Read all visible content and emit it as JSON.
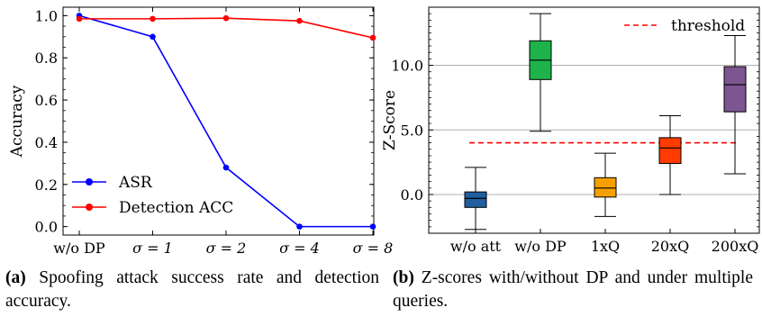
{
  "chart_data": [
    {
      "type": "line",
      "categories": [
        "w/o DP",
        "σ=1",
        "σ=2",
        "σ=4",
        "σ=8"
      ],
      "ylabel": "Accuracy",
      "ylim": [
        -0.04,
        1.04
      ],
      "yticks": [
        "0.0",
        "0.2",
        "0.4",
        "0.6",
        "0.8",
        "1.0"
      ],
      "legend_position": "lower-left",
      "series": [
        {
          "name": "ASR",
          "color": "#0000ff",
          "values": [
            1.0,
            0.9,
            0.28,
            0.0,
            0.0
          ]
        },
        {
          "name": "Detection ACC",
          "color": "#ff0000",
          "values": [
            0.985,
            0.985,
            0.988,
            0.975,
            0.895
          ]
        }
      ],
      "caption_label": "(a)",
      "caption_text": "Spoofing attack success rate and detection accuracy."
    },
    {
      "type": "box",
      "categories": [
        "w/o att",
        "w/o DP",
        "1xQ",
        "20xQ",
        "200xQ"
      ],
      "ylabel": "Z-Score",
      "ylim": [
        -3.0,
        14.5
      ],
      "yticks": [
        "0.0",
        "5.0",
        "10.0"
      ],
      "grid": true,
      "threshold": {
        "name": "threshold",
        "value": 4.0,
        "color": "#ff0000"
      },
      "boxes": [
        {
          "label": "w/o att",
          "color": "#1f5f9f",
          "whisker_low": -2.7,
          "q1": -1.0,
          "median": -0.3,
          "q3": 0.2,
          "whisker_high": 2.1
        },
        {
          "label": "w/o DP",
          "color": "#1db34a",
          "whisker_low": 4.9,
          "q1": 8.9,
          "median": 10.4,
          "q3": 11.9,
          "whisker_high": 14.0
        },
        {
          "label": "1xQ",
          "color": "#f5a000",
          "whisker_low": -1.7,
          "q1": -0.2,
          "median": 0.5,
          "q3": 1.3,
          "whisker_high": 3.2
        },
        {
          "label": "20xQ",
          "color": "#ff3b00",
          "whisker_low": 0.0,
          "q1": 2.4,
          "median": 3.6,
          "q3": 4.4,
          "whisker_high": 6.1
        },
        {
          "label": "200xQ",
          "color": "#7d5590",
          "whisker_low": 1.6,
          "q1": 6.4,
          "median": 8.5,
          "q3": 9.9,
          "whisker_high": 12.3
        }
      ],
      "caption_label": "(b)",
      "caption_text": "Z-scores with/without DP and under multiple queries."
    }
  ]
}
